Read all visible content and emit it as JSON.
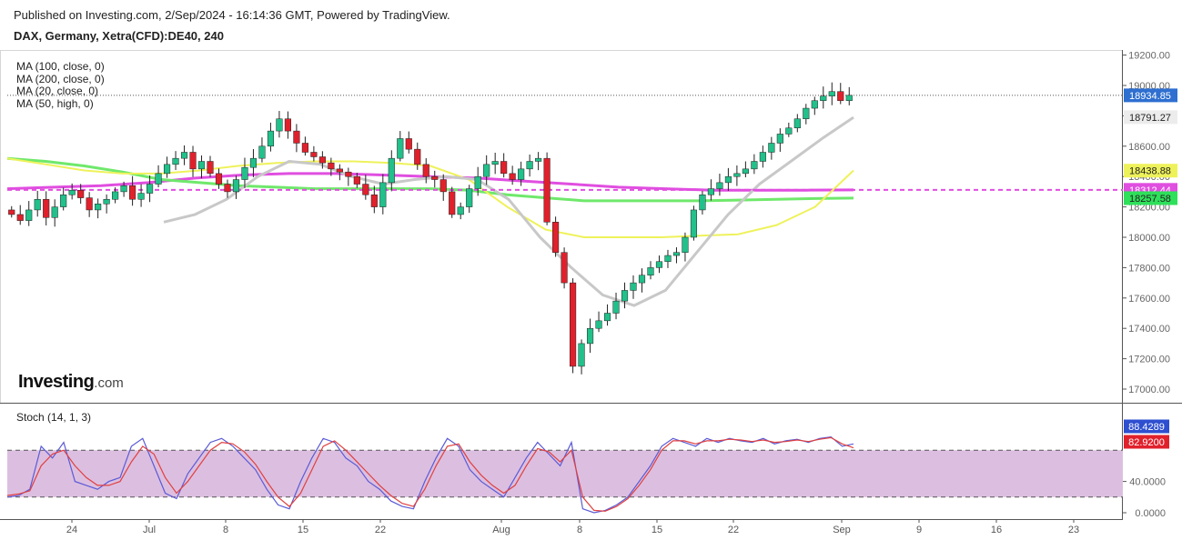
{
  "header": {
    "published": "Published on Investing.com, 2/Sep/2024 - 16:14:36 GMT, Powered by TradingView.",
    "symbol": "DAX, Germany, Xetra(CFD):DE40, 240"
  },
  "logo": {
    "brand": "Investing",
    "suffix": ".com"
  },
  "indicators": {
    "ma_labels": [
      "MA (100, close, 0)",
      "MA (200, close, 0)",
      "MA (20, close, 0)",
      "MA (50, high, 0)"
    ],
    "stoch_label": "Stoch (14, 1, 3)"
  },
  "colors": {
    "up_candle": "#22c08a",
    "down_candle": "#e0212c",
    "ma100": "#eef25a",
    "ma200": "#6fe86b",
    "ma20": "#c8c8c8",
    "ma50": "#e04ee0",
    "stoch_k": "#5b5bd6",
    "stoch_d": "#e04040",
    "stoch_band": "#dcbfe0"
  },
  "chart_data": [
    {
      "type": "candlestick",
      "ylim": [
        16900,
        19250
      ],
      "y_ticks": [
        17000,
        17200,
        17400,
        17600,
        17800,
        18000,
        18200,
        18400,
        18600,
        18800,
        19000,
        19200
      ],
      "y_tick_labels": [
        "17000.00",
        "17200.00",
        "17400.00",
        "17600.00",
        "17800.00",
        "18000.00",
        "18200.00",
        "18400.00",
        "18600.00",
        "18800.00",
        "19000.00",
        "19200.00"
      ],
      "x_tick_labels": [
        "24",
        "Jul",
        "8",
        "15",
        "22",
        "Aug",
        "8",
        "15",
        "22",
        "Sep",
        "9",
        "16",
        "23"
      ],
      "last_price": 18934.85,
      "price_tags": [
        {
          "label": "18934.85",
          "value": 18934.85,
          "role": "last"
        },
        {
          "label": "18791.27",
          "value": 18791.27,
          "role": "ma20"
        },
        {
          "label": "18438.88",
          "value": 18438.88,
          "role": "ma100"
        },
        {
          "label": "18312.44",
          "value": 18312.44,
          "role": "ma50"
        },
        {
          "label": "18257.58",
          "value": 18257.58,
          "role": "ma200"
        }
      ],
      "candle_close_path": [
        18150,
        18110,
        18180,
        18250,
        18130,
        18200,
        18280,
        18310,
        18260,
        18180,
        18220,
        18250,
        18300,
        18340,
        18250,
        18290,
        18350,
        18420,
        18480,
        18520,
        18560,
        18450,
        18500,
        18420,
        18350,
        18300,
        18380,
        18460,
        18520,
        18600,
        18700,
        18780,
        18700,
        18620,
        18560,
        18530,
        18490,
        18450,
        18430,
        18400,
        18350,
        18280,
        18200,
        18360,
        18520,
        18650,
        18580,
        18480,
        18400,
        18380,
        18300,
        18150,
        18200,
        18320,
        18400,
        18480,
        18500,
        18420,
        18380,
        18450,
        18500,
        18520,
        18100,
        17900,
        17700,
        17150,
        17300,
        17400,
        17450,
        17500,
        17580,
        17650,
        17700,
        17750,
        17800,
        17840,
        17880,
        17900,
        18000,
        18180,
        18280,
        18320,
        18360,
        18400,
        18420,
        18450,
        18500,
        18560,
        18620,
        18680,
        18720,
        18780,
        18850,
        18900,
        18930,
        18960,
        18900,
        18935
      ],
      "ma100_path": [
        18520,
        18480,
        18440,
        18420,
        18420,
        18440,
        18470,
        18490,
        18500,
        18500,
        18490,
        18470,
        18380,
        18200,
        18050,
        18000,
        18000,
        18000,
        18010,
        18020,
        18080,
        18200,
        18440
      ],
      "ma200_path": [
        18520,
        18500,
        18470,
        18430,
        18380,
        18360,
        18340,
        18330,
        18320,
        18320,
        18320,
        18320,
        18310,
        18280,
        18260,
        18240,
        18240,
        18240,
        18240,
        18245,
        18250,
        18255,
        18258
      ],
      "ma20_path": [
        18100,
        18150,
        18250,
        18400,
        18500,
        18480,
        18400,
        18350,
        18380,
        18400,
        18380,
        18250,
        18000,
        17800,
        17620,
        17550,
        17650,
        17900,
        18150,
        18350,
        18500,
        18650,
        18790
      ],
      "ma50_path": [
        18320,
        18330,
        18340,
        18360,
        18390,
        18410,
        18420,
        18420,
        18410,
        18400,
        18390,
        18370,
        18350,
        18330,
        18320,
        18310,
        18310,
        18310,
        18312
      ]
    },
    {
      "type": "line",
      "title": "Stoch (14, 1, 3)",
      "ylim": [
        0,
        100
      ],
      "y_ticks": [
        0,
        40
      ],
      "y_tick_labels": [
        "0.0000",
        "40.0000"
      ],
      "band": [
        20,
        80
      ],
      "series": [
        {
          "name": "%K",
          "label": "88.4289",
          "values": [
            20,
            22,
            30,
            85,
            70,
            90,
            40,
            35,
            30,
            40,
            45,
            85,
            95,
            60,
            25,
            18,
            50,
            70,
            90,
            95,
            85,
            70,
            55,
            30,
            10,
            5,
            40,
            70,
            95,
            90,
            70,
            60,
            40,
            30,
            15,
            8,
            5,
            40,
            70,
            95,
            85,
            55,
            40,
            30,
            20,
            45,
            70,
            90,
            75,
            60,
            90,
            5,
            0,
            3,
            10,
            20,
            40,
            60,
            85,
            95,
            90,
            85,
            95,
            90,
            95,
            92,
            90,
            95,
            88,
            92,
            94,
            90,
            95,
            97,
            85,
            88
          ]
        },
        {
          "name": "%D",
          "label": "82.9200",
          "values": [
            22,
            24,
            28,
            60,
            75,
            80,
            60,
            45,
            35,
            35,
            40,
            65,
            85,
            75,
            45,
            25,
            40,
            60,
            80,
            90,
            88,
            78,
            62,
            40,
            20,
            8,
            25,
            55,
            85,
            92,
            80,
            65,
            50,
            35,
            22,
            12,
            8,
            30,
            60,
            85,
            88,
            65,
            48,
            35,
            25,
            35,
            60,
            82,
            78,
            65,
            80,
            20,
            3,
            2,
            8,
            18,
            35,
            55,
            80,
            92,
            92,
            88,
            92,
            92,
            94,
            93,
            91,
            93,
            90,
            91,
            93,
            91,
            94,
            96,
            88,
            83
          ]
        }
      ]
    }
  ]
}
